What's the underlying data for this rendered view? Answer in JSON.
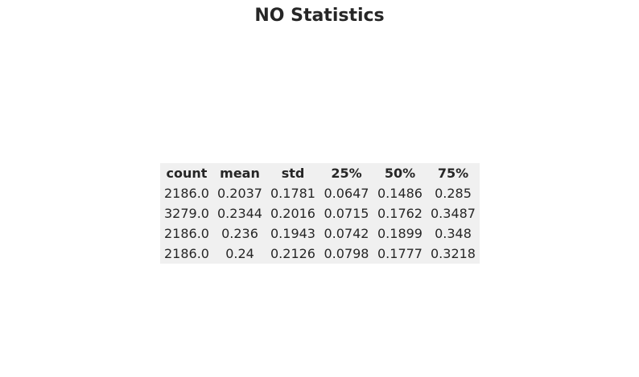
{
  "chart_data": {
    "type": "table",
    "title": "NO Statistics",
    "columns": [
      "count",
      "mean",
      "std",
      "25%",
      "50%",
      "75%"
    ],
    "rows": [
      [
        "2186.0",
        "0.2037",
        "0.1781",
        "0.0647",
        "0.1486",
        "0.285"
      ],
      [
        "3279.0",
        "0.2344",
        "0.2016",
        "0.0715",
        "0.1762",
        "0.3487"
      ],
      [
        "2186.0",
        "0.236",
        "0.1943",
        "0.0742",
        "0.1899",
        "0.348"
      ],
      [
        "2186.0",
        "0.24",
        "0.2126",
        "0.0798",
        "0.1777",
        "0.3218"
      ]
    ]
  }
}
